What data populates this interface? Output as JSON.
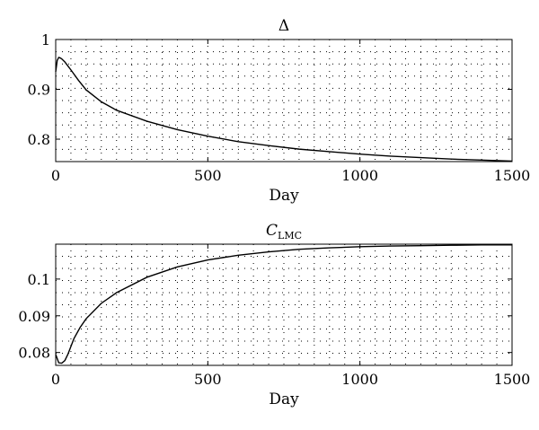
{
  "chart_data": [
    {
      "type": "line",
      "title": "Δ",
      "xlabel": "Day",
      "ylabel": "",
      "xlim": [
        0,
        1500
      ],
      "ylim": [
        0.755,
        1.0
      ],
      "xticks": [
        0,
        500,
        1000,
        1500
      ],
      "xtick_labels": [
        "0",
        "500",
        "1000",
        "1500"
      ],
      "yticks": [
        0.8,
        0.9,
        1.0
      ],
      "ytick_labels": [
        "0.8",
        "0.9",
        "1"
      ],
      "grid": true,
      "legend": "none",
      "series": [
        {
          "x": [
            0,
            5,
            10,
            15,
            20,
            30,
            40,
            50,
            75,
            100,
            150,
            200,
            300,
            400,
            500,
            600,
            700,
            800,
            900,
            1000,
            1100,
            1200,
            1300,
            1400,
            1500
          ],
          "y": [
            0.935,
            0.958,
            0.964,
            0.963,
            0.961,
            0.955,
            0.947,
            0.939,
            0.918,
            0.899,
            0.875,
            0.858,
            0.836,
            0.819,
            0.806,
            0.795,
            0.787,
            0.78,
            0.775,
            0.77,
            0.766,
            0.763,
            0.76,
            0.758,
            0.756
          ]
        }
      ]
    },
    {
      "type": "line",
      "title": "C",
      "title_subscript": "LMC",
      "xlabel": "Day",
      "ylabel": "",
      "xlim": [
        0,
        1500
      ],
      "ylim": [
        0.0765,
        0.1095
      ],
      "xticks": [
        0,
        500,
        1000,
        1500
      ],
      "xtick_labels": [
        "0",
        "500",
        "1000",
        "1500"
      ],
      "yticks": [
        0.08,
        0.09,
        0.1
      ],
      "ytick_labels": [
        "0.08",
        "0.09",
        "0.1"
      ],
      "grid": true,
      "legend": "none",
      "series": [
        {
          "x": [
            0,
            10,
            20,
            30,
            40,
            60,
            80,
            100,
            150,
            200,
            300,
            400,
            500,
            600,
            700,
            800,
            900,
            1000,
            1100,
            1200,
            1300,
            1400,
            1500
          ],
          "y": [
            0.0795,
            0.0772,
            0.0771,
            0.0778,
            0.0795,
            0.0838,
            0.0868,
            0.0892,
            0.0934,
            0.0963,
            0.1005,
            0.1033,
            0.1052,
            0.1065,
            0.1074,
            0.1081,
            0.1085,
            0.1088,
            0.109,
            0.1091,
            0.1092,
            0.1093,
            0.1093
          ]
        }
      ]
    }
  ]
}
